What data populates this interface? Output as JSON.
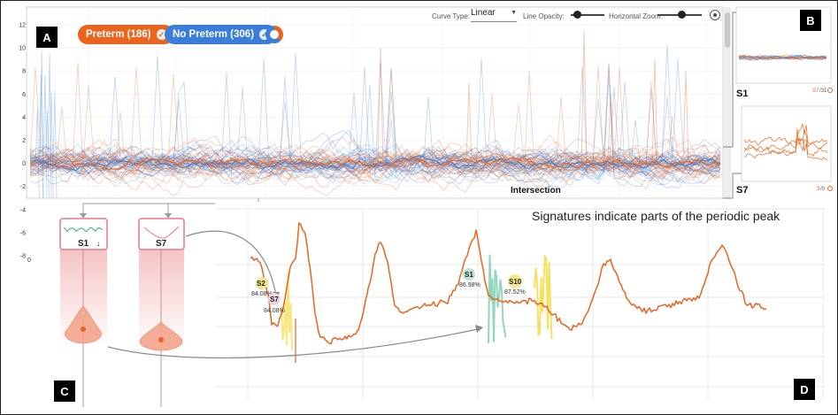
{
  "badges": {
    "a": "A",
    "b": "B",
    "c": "C",
    "d": "D"
  },
  "legend": {
    "preterm_label": "Preterm (186)",
    "no_preterm_label": "No Preterm (306)",
    "preterm_color": "#e8641f",
    "no_preterm_color": "#3b7dd8",
    "check_icon": "check-circle-icon",
    "donut_icon": "donut-toggle-icon"
  },
  "controls": {
    "curve_type_label": "Curve Type:",
    "curve_type_value": "Linear",
    "line_opacity_label": "Line Opacity:",
    "line_opacity_value": 0.2,
    "horizontal_zoom_label": "Horizontal Zoom:",
    "horizontal_zoom_value": 0.55,
    "locate_icon": "crosshair-icon"
  },
  "main_chart": {
    "y_ticks": [
      "12",
      "10",
      "8",
      "6",
      "4",
      "2",
      "0",
      "-2",
      "-4",
      "-6",
      "-8"
    ],
    "x_tick_first": "0",
    "intersection_label": "Intersection"
  },
  "side_panels": {
    "s1_label": "S1",
    "s1_footer_a": "S7",
    "s1_footer_b": "/31",
    "s7_label": "S7",
    "s7_footer_a": "3",
    "s7_footer_b": "/0"
  },
  "signatures": {
    "card_s1": "S1",
    "card_s7": "S7",
    "sort_icon": "arrow-down-icon"
  },
  "detail": {
    "caption": "Signatures indicate parts of the periodic peak",
    "labels": [
      {
        "name": "S2",
        "pct": "84.08%"
      },
      {
        "name": "S7",
        "pct": "84.08%"
      },
      {
        "name": "S1",
        "pct": "86.98%"
      },
      {
        "name": "S10",
        "pct": "87.52%"
      }
    ]
  },
  "chart_data": {
    "type": "line",
    "title": "",
    "ylim": [
      -8,
      12
    ],
    "y_ticks": [
      12,
      10,
      8,
      6,
      4,
      2,
      0,
      -2,
      -4,
      -6,
      -8
    ],
    "series": [
      {
        "name": "Preterm (186)",
        "count": 186,
        "color": "#e8641f"
      },
      {
        "name": "No Preterm (306)",
        "count": 306,
        "color": "#3b7dd8"
      }
    ],
    "grid": true,
    "legend": "top-left"
  }
}
